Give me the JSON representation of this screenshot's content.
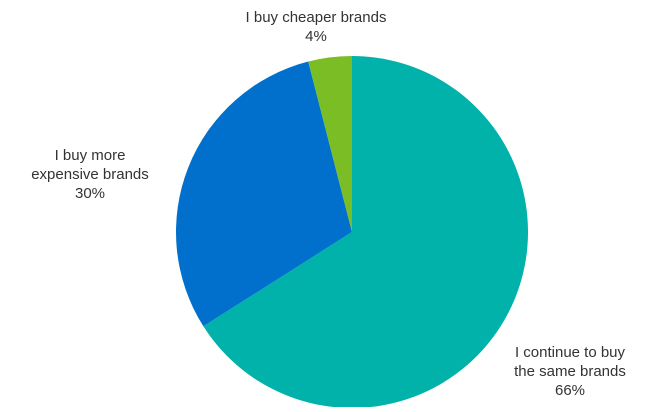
{
  "chart_data": {
    "type": "pie",
    "title": "",
    "start_angle_deg": 0,
    "direction": "clockwise",
    "slices": [
      {
        "label_lines": [
          "I continue to buy",
          "the same brands"
        ],
        "value": 66,
        "value_label": "66%",
        "color": "#00B2A9"
      },
      {
        "label_lines": [
          "I buy more",
          "expensive brands"
        ],
        "value": 30,
        "value_label": "30%",
        "color": "#0070CC"
      },
      {
        "label_lines": [
          "I buy cheaper brands"
        ],
        "value": 4,
        "value_label": "4%",
        "color": "#7ABD25"
      }
    ]
  }
}
